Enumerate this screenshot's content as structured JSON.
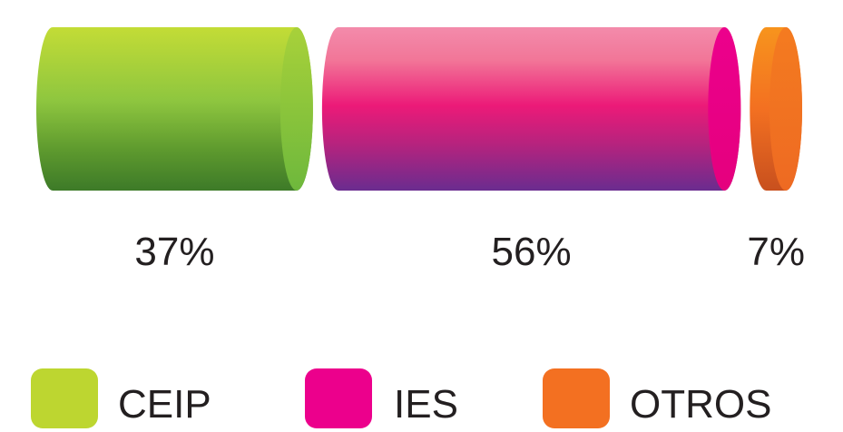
{
  "chart_data": {
    "type": "bar",
    "orientation": "horizontal-stacked",
    "unit": "%",
    "categories": [
      "CEIP",
      "IES",
      "OTROS"
    ],
    "values": [
      37,
      56,
      7
    ],
    "value_labels": [
      "37%",
      "56%",
      "7%"
    ],
    "legend": {
      "placement": "bottom",
      "entries": [
        "CEIP",
        "IES",
        "OTROS"
      ]
    },
    "colors": [
      "#bdd630",
      "#ec008c",
      "#f37021"
    ],
    "grid": false
  }
}
